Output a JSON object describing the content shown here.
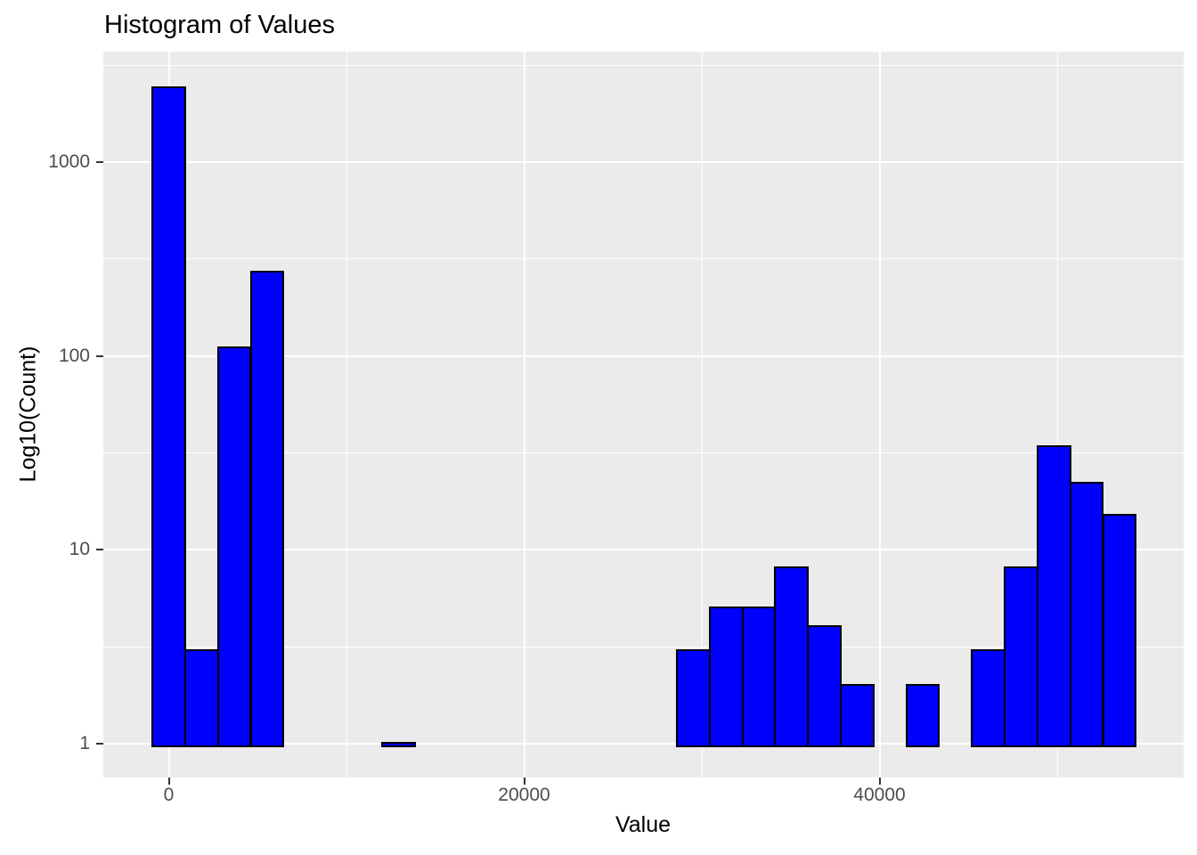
{
  "chart_data": {
    "type": "bar",
    "variant": "histogram",
    "title": "Histogram of Values",
    "xlabel": "Value",
    "ylabel": "Log10(Count)",
    "x_axis": {
      "tick_labels": [
        "0",
        "20000",
        "40000"
      ],
      "tick_values": [
        0,
        20000,
        40000
      ],
      "minor_values": [
        10000,
        30000,
        50000
      ]
    },
    "y_axis": {
      "scale": "log10",
      "tick_labels": [
        "1",
        "10",
        "100",
        "1000"
      ],
      "tick_values": [
        1,
        10,
        100,
        1000
      ],
      "minor_values": [
        3.162,
        31.62,
        316.2,
        3162
      ]
    },
    "grid": true,
    "legend": "none",
    "binwidth": 1845,
    "bins": [
      {
        "center": 0,
        "count": 2400
      },
      {
        "center": 1845,
        "count": 3
      },
      {
        "center": 3690,
        "count": 110
      },
      {
        "center": 5535,
        "count": 270
      },
      {
        "center": 12915,
        "count": 1
      },
      {
        "center": 29520,
        "count": 3
      },
      {
        "center": 31365,
        "count": 5
      },
      {
        "center": 33210,
        "count": 5
      },
      {
        "center": 35055,
        "count": 8
      },
      {
        "center": 36900,
        "count": 4
      },
      {
        "center": 38745,
        "count": 2
      },
      {
        "center": 42435,
        "count": 2
      },
      {
        "center": 46125,
        "count": 3
      },
      {
        "center": 47970,
        "count": 8
      },
      {
        "center": 49815,
        "count": 34
      },
      {
        "center": 51660,
        "count": 22
      },
      {
        "center": 53505,
        "count": 15
      }
    ],
    "colors": {
      "panel_bg": "#ebebeb",
      "grid": "#ffffff",
      "bar_fill": "#0000ff",
      "bar_stroke": "#000000",
      "tick_text": "#4d4d4d",
      "tick_mark": "#333333",
      "title_text": "#000000"
    }
  }
}
